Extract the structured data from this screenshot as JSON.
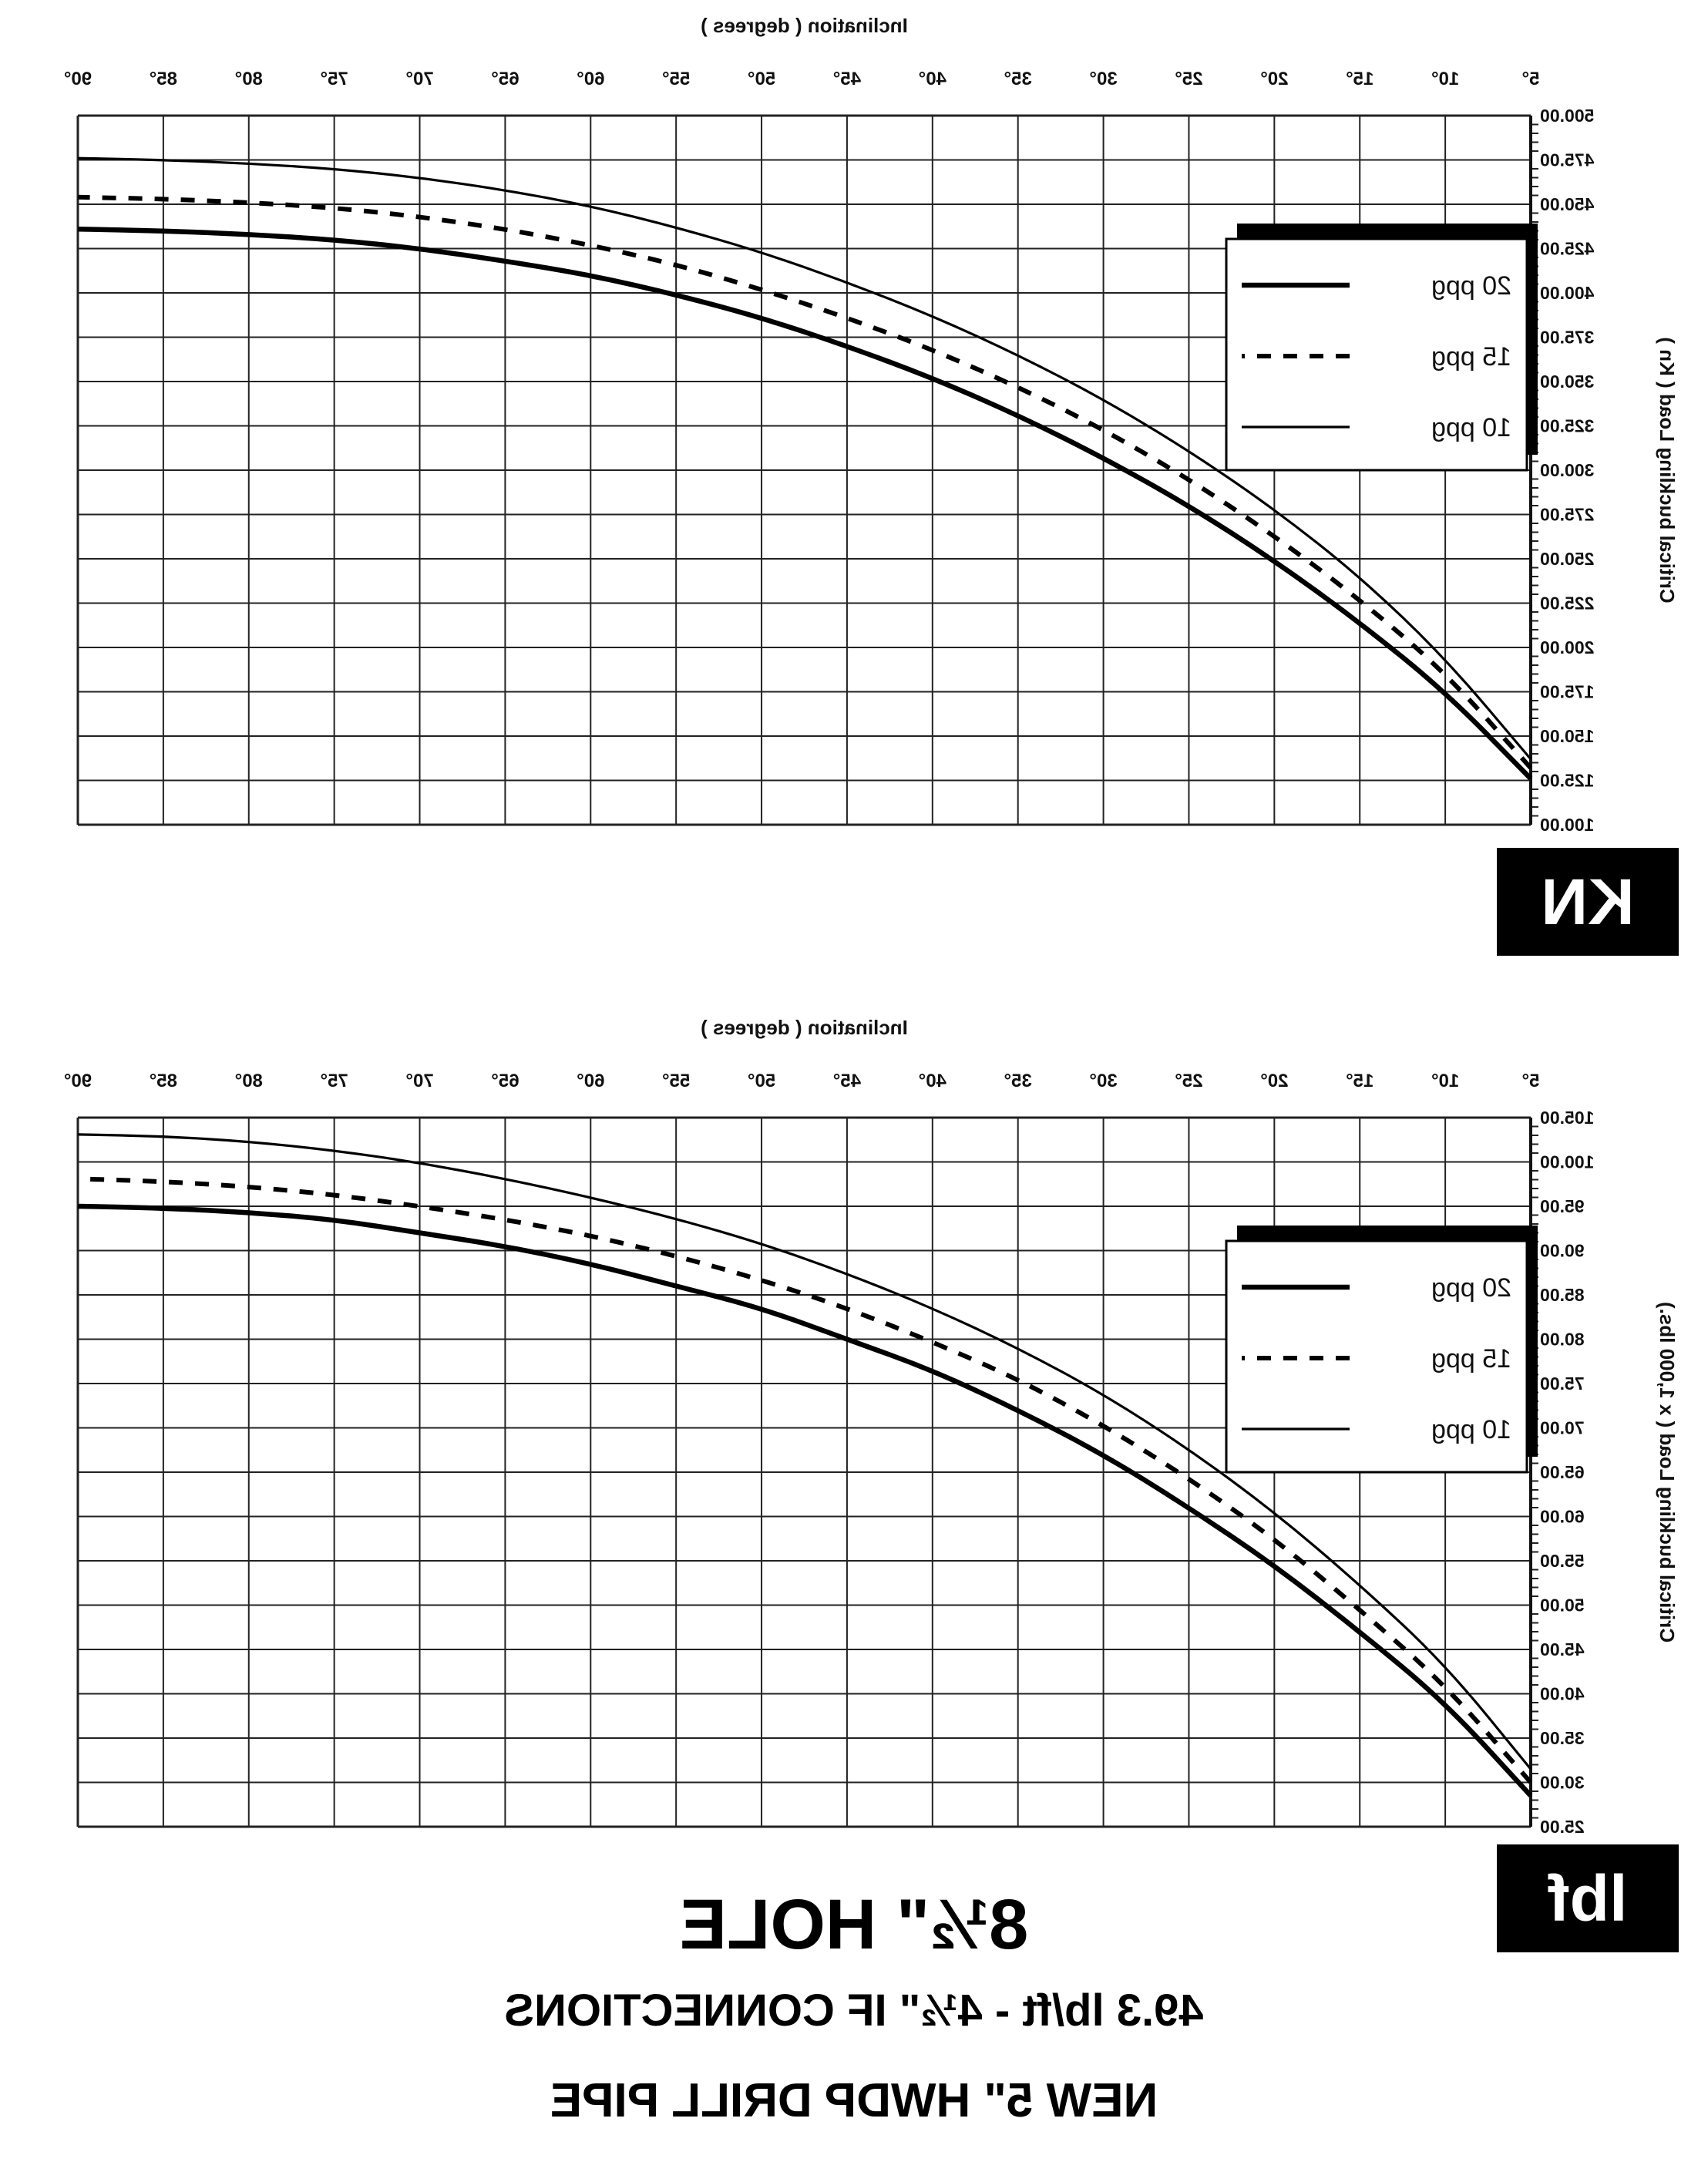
{
  "chart_data": [
    {
      "type": "line",
      "unit_badge": "KN",
      "xlabel": "Inclination ( degrees )",
      "ylabel": "Critical buckling Load ( Kn )",
      "x_ticks": [
        "5°",
        "10°",
        "15°",
        "20°",
        "25°",
        "30°",
        "35°",
        "40°",
        "45°",
        "50°",
        "55°",
        "60°",
        "65°",
        "70°",
        "75°",
        "80°",
        "85°",
        "90°"
      ],
      "x": [
        5,
        10,
        15,
        20,
        25,
        30,
        35,
        40,
        45,
        50,
        55,
        60,
        65,
        70,
        75,
        80,
        85,
        90
      ],
      "xlim": [
        5,
        90
      ],
      "y_ticks": [
        "100.00",
        "125.00",
        "150.00",
        "175.00",
        "200.00",
        "225.00",
        "250.00",
        "275.00",
        "300.00",
        "325.00",
        "350.00",
        "375.00",
        "400.00",
        "425.00",
        "450.00",
        "475.00",
        "500.00"
      ],
      "ylim": [
        100,
        500
      ],
      "y_inverted": true,
      "grid": true,
      "legend_position": "top-right",
      "series": [
        {
          "name": "20 ppg",
          "style": "thick",
          "values": [
            126,
            175,
            214,
            249,
            280,
            307,
            331,
            352,
            370,
            386,
            399,
            410,
            418,
            425,
            430,
            433,
            435,
            436
          ]
        },
        {
          "name": "15 ppg",
          "style": "dashed",
          "values": [
            132,
            186,
            227,
            263,
            295,
            323,
            347,
            368,
            386,
            402,
            416,
            427,
            436,
            443,
            448,
            451,
            453,
            454
          ]
        },
        {
          "name": "10 ppg",
          "style": "thin",
          "values": [
            137,
            194,
            240,
            278,
            311,
            340,
            365,
            387,
            406,
            423,
            437,
            449,
            458,
            465,
            470,
            473,
            475,
            476
          ]
        }
      ]
    },
    {
      "type": "line",
      "unit_badge": "lbf",
      "xlabel": "Inclination ( degrees )",
      "ylabel": "Critical buckling Load ( x 1,000 lbs.)",
      "x_ticks": [
        "5°",
        "10°",
        "15°",
        "20°",
        "25°",
        "30°",
        "35°",
        "40°",
        "45°",
        "50°",
        "55°",
        "60°",
        "65°",
        "70°",
        "75°",
        "80°",
        "85°",
        "90°"
      ],
      "x": [
        5,
        10,
        15,
        20,
        25,
        30,
        35,
        40,
        45,
        50,
        55,
        60,
        65,
        70,
        75,
        80,
        85,
        90
      ],
      "xlim": [
        5,
        90
      ],
      "y_ticks": [
        "25.00",
        "30.00",
        "35.00",
        "40.00",
        "45.00",
        "50.00",
        "55.00",
        "60.00",
        "65.00",
        "70.00",
        "75.00",
        "80.00",
        "85.00",
        "90.00",
        "95.00",
        "100.00",
        "105.00"
      ],
      "ylim": [
        25,
        105
      ],
      "y_inverted": true,
      "grid": true,
      "legend_position": "top-right",
      "series": [
        {
          "name": "20 ppg",
          "style": "thick",
          "values": [
            28.5,
            39,
            47,
            54.5,
            61,
            67,
            72,
            76.5,
            80,
            83.5,
            86,
            88.5,
            90.5,
            92,
            93.5,
            94.3,
            94.8,
            95
          ]
        },
        {
          "name": "15 ppg",
          "style": "dashed",
          "values": [
            30,
            41,
            49.5,
            57.5,
            64.3,
            70.3,
            75.5,
            79.7,
            83.5,
            86.7,
            89.4,
            91.7,
            93.5,
            95,
            96.3,
            97.2,
            97.8,
            98.1
          ]
        },
        {
          "name": "10 ppg",
          "style": "thin",
          "values": [
            31.5,
            43.3,
            52.3,
            60.5,
            67.6,
            73.8,
            79,
            83.5,
            87.4,
            90.8,
            93.6,
            96,
            98.1,
            99.9,
            101.3,
            102.3,
            102.9,
            103.1
          ]
        }
      ]
    }
  ],
  "title": {
    "line1": "8½\" HOLE",
    "line2": "49.3 lb/ft  -  4½\" IF CONNECTIONS",
    "line3": "NEW 5\" HWDP DRILL PIPE"
  }
}
